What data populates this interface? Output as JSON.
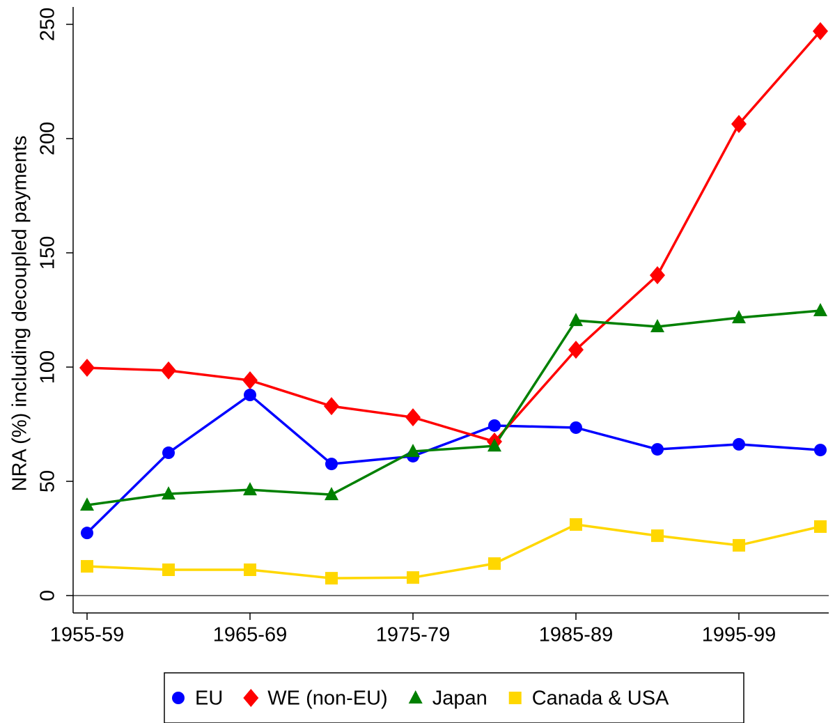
{
  "chart_data": {
    "type": "line",
    "y_label": "NRA (%) including decoupled payments",
    "categories": [
      "1955-59",
      null,
      "1965-69",
      null,
      "1975-79",
      null,
      "1985-89",
      null,
      "1995-99",
      null
    ],
    "series": [
      {
        "name": "EU",
        "color": "#0000ff",
        "marker": "circle",
        "values": [
          27.4,
          62.5,
          87.8,
          57.6,
          61,
          74.4,
          73.5,
          64,
          66.2,
          63.7
        ]
      },
      {
        "name": "WE (non-EU)",
        "color": "#ff0000",
        "marker": "diamond",
        "values": [
          99.7,
          98.5,
          94.2,
          82.9,
          78,
          67.4,
          107.6,
          140.2,
          206.4,
          247
        ]
      },
      {
        "name": "Japan",
        "color": "#008000",
        "marker": "triangle",
        "values": [
          39.6,
          44.5,
          46.3,
          44.2,
          63.1,
          65.5,
          120.4,
          117.7,
          121.6,
          124.7
        ]
      },
      {
        "name": "Canada & USA",
        "color": "#ffd700",
        "marker": "square",
        "values": [
          12.8,
          11.3,
          11.3,
          7.6,
          7.9,
          14,
          31.1,
          26.2,
          22,
          30.2
        ]
      }
    ],
    "ylim": [
      -7.6,
      257.6
    ],
    "yticks": [
      0,
      50,
      100,
      150,
      200,
      250
    ],
    "zero_line": true,
    "legend": "bottom"
  }
}
